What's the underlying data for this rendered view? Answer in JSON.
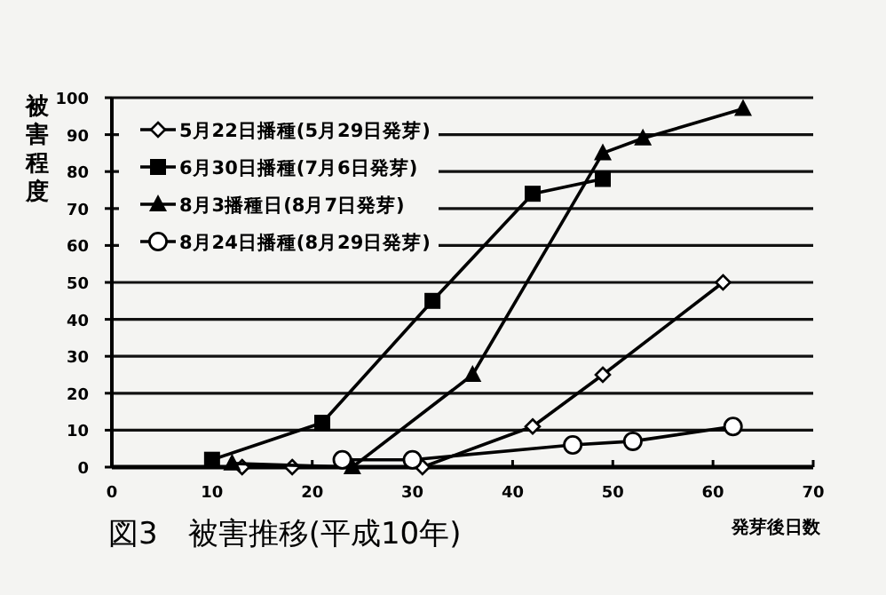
{
  "chart_data": {
    "type": "line",
    "title": "図3　被害推移(平成10年)",
    "xlabel": "発芽後日数",
    "ylabel": "被害程度",
    "xlim": [
      0,
      70
    ],
    "xticks": [
      0,
      10,
      20,
      30,
      40,
      50,
      60,
      70
    ],
    "ylim": [
      0,
      100
    ],
    "yticks": [
      0,
      10,
      20,
      30,
      40,
      50,
      60,
      70,
      80,
      90,
      100
    ],
    "grid": "y",
    "legend": "top left",
    "line_style": "solid",
    "series": [
      {
        "name": "5月22日播種(5月29日発芽)",
        "color": "#000000",
        "marker": "diamond",
        "x": [
          13,
          18,
          31,
          42,
          49,
          61
        ],
        "values": [
          0,
          0,
          0,
          11,
          25,
          50
        ]
      },
      {
        "name": "6月30日播種(7月6日発芽)",
        "color": "#000000",
        "marker": "square",
        "x": [
          10,
          21,
          32,
          42,
          49
        ],
        "values": [
          2,
          12,
          45,
          74,
          78
        ]
      },
      {
        "name": "8月3播種日(8月7日発芽)",
        "color": "#000000",
        "marker": "triangle",
        "x": [
          12,
          24,
          36,
          49,
          53,
          63
        ],
        "values": [
          1,
          0,
          25,
          85,
          89,
          97
        ]
      },
      {
        "name": "8月24日播種(8月29日発芽)",
        "color": "#000000",
        "marker": "circle",
        "x": [
          23,
          30,
          46,
          52,
          62
        ],
        "values": [
          2,
          2,
          6,
          7,
          11
        ]
      }
    ]
  }
}
